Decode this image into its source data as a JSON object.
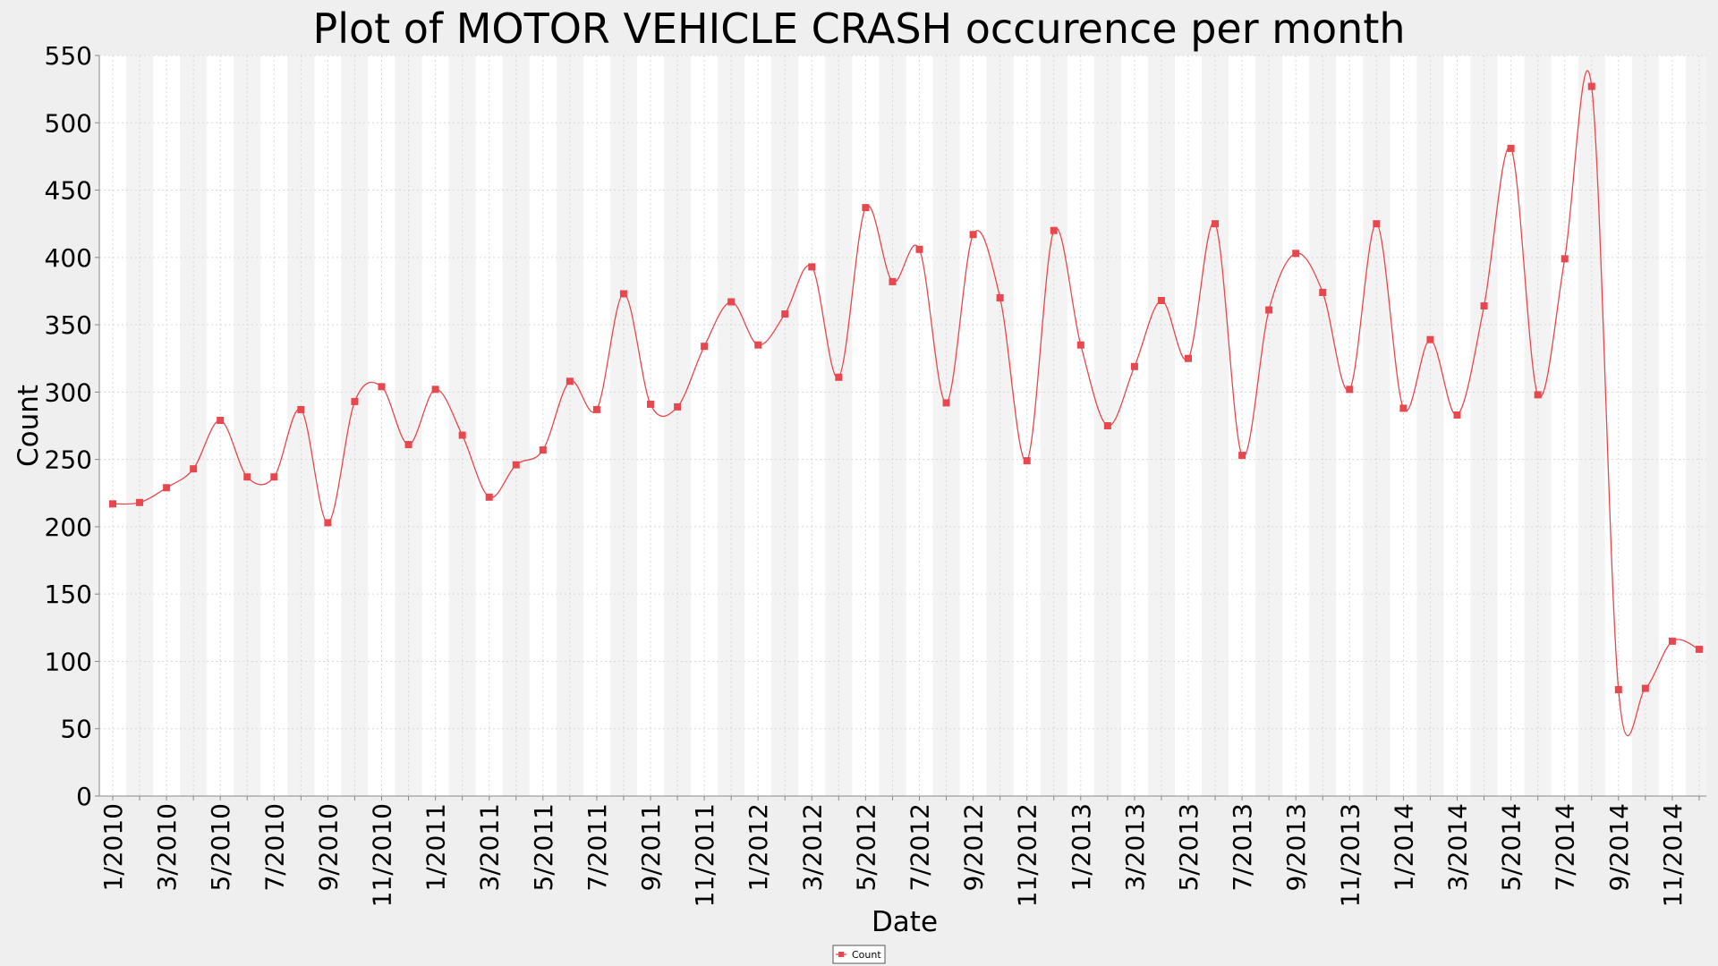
{
  "chart_data": {
    "type": "line",
    "title": "Plot of MOTOR VEHICLE CRASH occurence per month",
    "xlabel": "Date",
    "ylabel": "Count",
    "ylim": [
      0,
      550
    ],
    "y_ticks": [
      0,
      50,
      100,
      150,
      200,
      250,
      300,
      350,
      400,
      450,
      500,
      550
    ],
    "x_tick_labels": [
      "1/2010",
      "3/2010",
      "5/2010",
      "7/2010",
      "9/2010",
      "11/2010",
      "1/2011",
      "3/2011",
      "5/2011",
      "7/2011",
      "9/2011",
      "11/2011",
      "1/2012",
      "3/2012",
      "5/2012",
      "7/2012",
      "9/2012",
      "11/2012",
      "1/2013",
      "3/2013",
      "5/2013",
      "7/2013",
      "9/2013",
      "11/2013",
      "1/2014",
      "3/2014",
      "5/2014",
      "7/2014",
      "9/2014",
      "11/2014"
    ],
    "grid": true,
    "legend_position": "bottom",
    "series": [
      {
        "name": "Count",
        "color": "#e8474d",
        "x": [
          "1/2010",
          "2/2010",
          "3/2010",
          "4/2010",
          "5/2010",
          "6/2010",
          "7/2010",
          "8/2010",
          "9/2010",
          "10/2010",
          "11/2010",
          "12/2010",
          "1/2011",
          "2/2011",
          "3/2011",
          "4/2011",
          "5/2011",
          "6/2011",
          "7/2011",
          "8/2011",
          "9/2011",
          "10/2011",
          "11/2011",
          "12/2011",
          "1/2012",
          "2/2012",
          "3/2012",
          "4/2012",
          "5/2012",
          "6/2012",
          "7/2012",
          "8/2012",
          "9/2012",
          "10/2012",
          "11/2012",
          "12/2012",
          "1/2013",
          "2/2013",
          "3/2013",
          "4/2013",
          "5/2013",
          "6/2013",
          "7/2013",
          "8/2013",
          "9/2013",
          "10/2013",
          "11/2013",
          "12/2013",
          "1/2014",
          "2/2014",
          "3/2014",
          "4/2014",
          "5/2014",
          "6/2014",
          "7/2014",
          "8/2014",
          "9/2014",
          "10/2014",
          "11/2014",
          "12/2014"
        ],
        "values": [
          217,
          218,
          229,
          243,
          279,
          237,
          237,
          287,
          203,
          293,
          304,
          261,
          302,
          268,
          222,
          246,
          257,
          308,
          287,
          373,
          291,
          289,
          334,
          367,
          335,
          358,
          393,
          311,
          437,
          382,
          406,
          292,
          417,
          370,
          249,
          420,
          335,
          275,
          319,
          368,
          325,
          425,
          253,
          361,
          403,
          374,
          302,
          425,
          288,
          339,
          283,
          364,
          481,
          298,
          399,
          527,
          79,
          80,
          115,
          109
        ]
      }
    ]
  }
}
